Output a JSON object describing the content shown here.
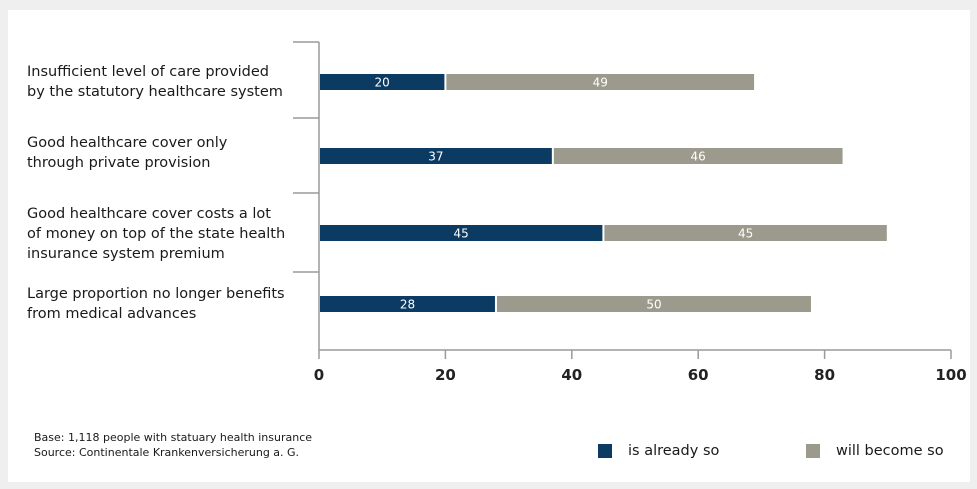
{
  "chart_data": {
    "type": "bar",
    "orientation": "horizontal",
    "stacked": true,
    "categories": [
      "Insufficient level of care provided\nby the statutory healthcare system",
      "Good healthcare cover only\nthrough private provision",
      "Good healthcare cover costs a lot\nof money on top of the state health\ninsurance system premium",
      "Large proportion no longer benefits\nfrom medical advances"
    ],
    "series": [
      {
        "name": "is already so",
        "values": [
          20,
          37,
          45,
          28
        ],
        "color": "#0b3a62"
      },
      {
        "name": "will become so",
        "values": [
          49,
          46,
          45,
          50
        ],
        "color": "#9b9a8c"
      }
    ],
    "xlim": [
      0,
      100
    ],
    "xticks": [
      "0",
      "20",
      "40",
      "60",
      "80",
      "100"
    ],
    "grid": false,
    "legend_position": "bottom-right"
  },
  "footnote": {
    "base": "Base: 1,118 people with statuary health insurance",
    "source": "Source: Continentale Krankenversicherung a. G."
  }
}
